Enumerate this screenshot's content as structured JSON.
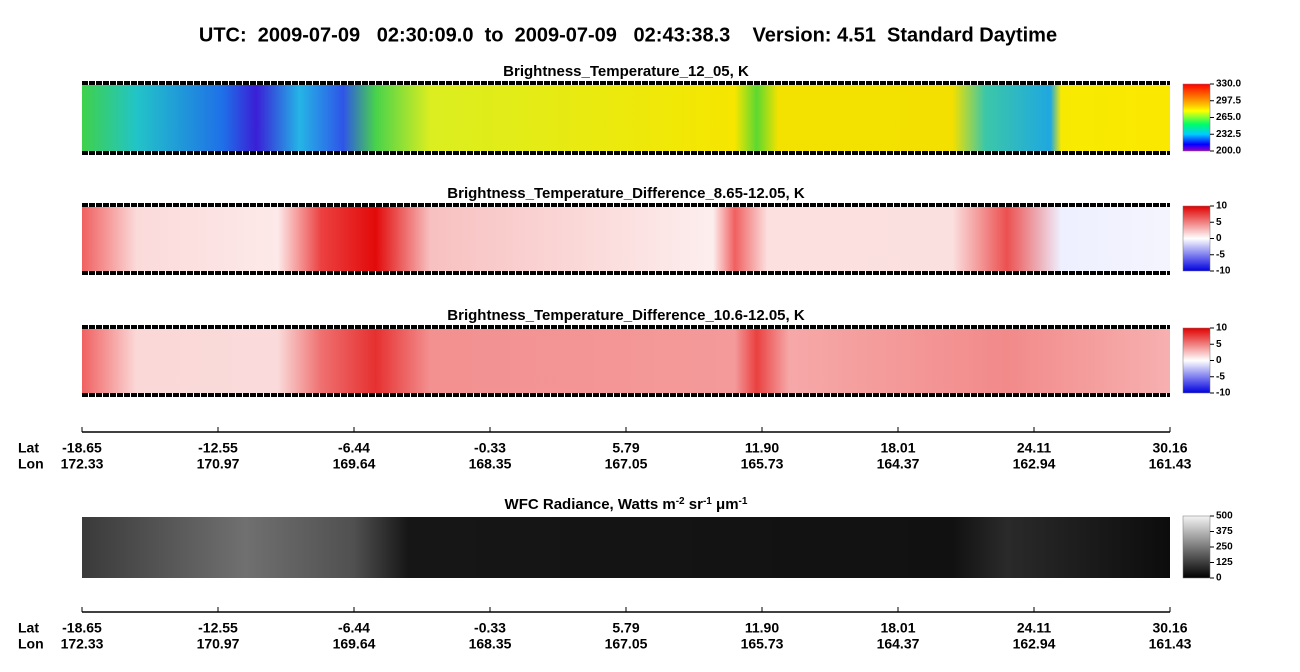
{
  "title": "UTC:  2009-07-09   02:30:09.0  to  2009-07-09   02:43:38.3    Version: 4.51  Standard Daytime",
  "panels": [
    {
      "title": [
        "Brightness_Temperature_12_05, K"
      ],
      "colorbar_ticks": [
        "330.0",
        "297.5",
        "265.0",
        "232.5",
        "200.0"
      ]
    },
    {
      "title": [
        "Brightness_Temperature_Difference_8.65-12.05, K"
      ],
      "colorbar_ticks": [
        "10",
        "5",
        "0",
        "-5",
        "-10"
      ]
    },
    {
      "title": [
        "Brightness_Temperature_Difference_10.6-12.05, K"
      ],
      "colorbar_ticks": [
        "10",
        "5",
        "0",
        "-5",
        "-10"
      ]
    },
    {
      "title": [
        "WFC Radiance, Watts m",
        "-2",
        " sr",
        "-1",
        " μm",
        "-1"
      ],
      "colorbar_ticks": [
        "500",
        "375",
        "250",
        "125",
        "0"
      ]
    }
  ],
  "axes": [
    {
      "lat_label": "Lat",
      "lon_label": "Lon",
      "lat": [
        "-18.65",
        "-12.55",
        "-6.44",
        "-0.33",
        "5.79",
        "11.90",
        "18.01",
        "24.11",
        "30.16"
      ],
      "lon": [
        "172.33",
        "170.97",
        "169.64",
        "168.35",
        "167.05",
        "165.73",
        "164.37",
        "162.94",
        "161.43"
      ]
    },
    {
      "lat_label": "Lat",
      "lon_label": "Lon",
      "lat": [
        "-18.65",
        "-12.55",
        "-6.44",
        "-0.33",
        "5.79",
        "11.90",
        "18.01",
        "24.11",
        "30.16"
      ],
      "lon": [
        "172.33",
        "170.97",
        "169.64",
        "168.35",
        "167.05",
        "165.73",
        "164.37",
        "162.94",
        "161.43"
      ]
    }
  ]
}
